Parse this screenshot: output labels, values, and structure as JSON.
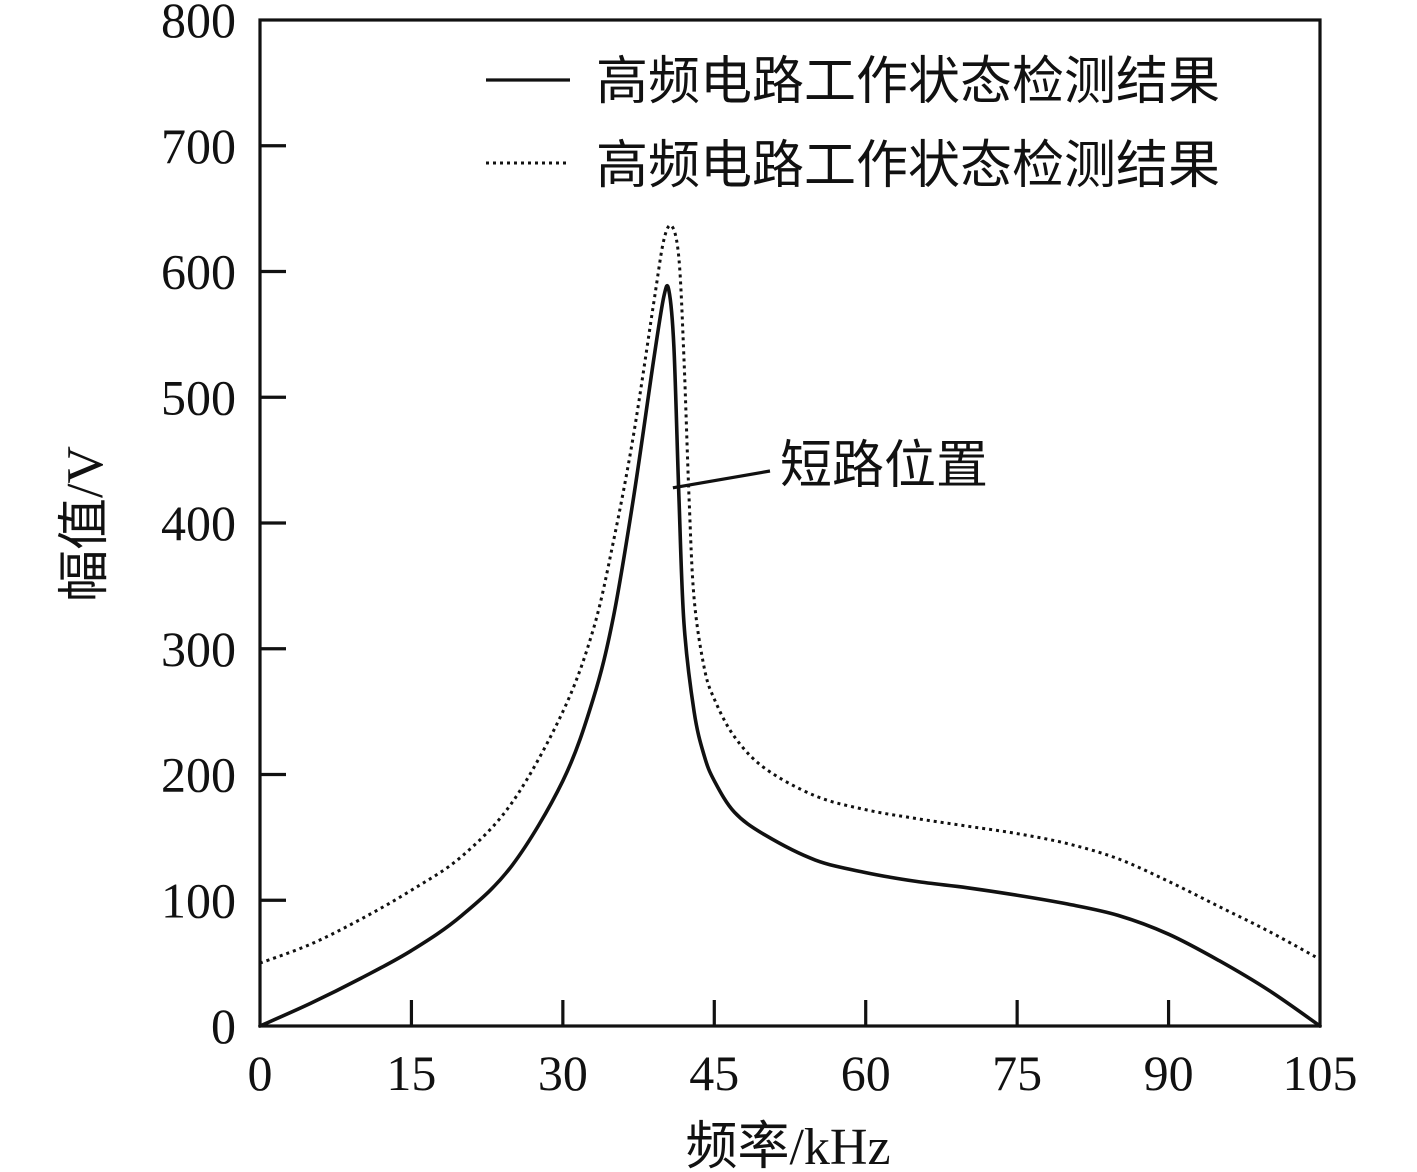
{
  "chart_data": {
    "type": "line",
    "title": "",
    "xlabel": "频率/kHz",
    "ylabel": "幅值/V",
    "xlim": [
      0,
      105
    ],
    "ylim": [
      0,
      800
    ],
    "xticks": [
      0,
      15,
      30,
      45,
      60,
      75,
      90,
      105
    ],
    "yticks": [
      0,
      100,
      200,
      300,
      400,
      500,
      600,
      700,
      800
    ],
    "xtick_labels": [
      "0",
      "15",
      "30",
      "45",
      "60",
      "75",
      "90",
      "105"
    ],
    "ytick_labels": [
      "0",
      "100",
      "200",
      "300",
      "400",
      "500",
      "600",
      "700",
      "800"
    ],
    "grid": false,
    "legend_position": "top-right",
    "colors": {
      "line": "#111111",
      "background": "#ffffff"
    },
    "series": [
      {
        "name": "高频电路工作状态检测结果",
        "style": "solid",
        "points": [
          [
            0,
            0
          ],
          [
            5,
            18
          ],
          [
            10,
            38
          ],
          [
            15,
            60
          ],
          [
            20,
            88
          ],
          [
            25,
            128
          ],
          [
            30,
            195
          ],
          [
            33,
            260
          ],
          [
            35,
            325
          ],
          [
            37,
            420
          ],
          [
            39,
            530
          ],
          [
            40,
            580
          ],
          [
            40.5,
            585
          ],
          [
            41,
            540
          ],
          [
            41.5,
            420
          ],
          [
            42,
            320
          ],
          [
            43,
            250
          ],
          [
            44,
            215
          ],
          [
            45,
            195
          ],
          [
            47,
            170
          ],
          [
            50,
            152
          ],
          [
            55,
            132
          ],
          [
            60,
            122
          ],
          [
            65,
            115
          ],
          [
            70,
            110
          ],
          [
            75,
            104
          ],
          [
            80,
            97
          ],
          [
            85,
            88
          ],
          [
            90,
            73
          ],
          [
            95,
            52
          ],
          [
            100,
            28
          ],
          [
            105,
            0
          ]
        ]
      },
      {
        "name": "高频电路工作状态检测结果",
        "style": "dashed",
        "points": [
          [
            0,
            50
          ],
          [
            5,
            65
          ],
          [
            10,
            85
          ],
          [
            15,
            108
          ],
          [
            20,
            135
          ],
          [
            25,
            178
          ],
          [
            30,
            250
          ],
          [
            33,
            315
          ],
          [
            35,
            385
          ],
          [
            37,
            470
          ],
          [
            39,
            575
          ],
          [
            40,
            625
          ],
          [
            40.8,
            636
          ],
          [
            41.5,
            610
          ],
          [
            42,
            530
          ],
          [
            42.5,
            420
          ],
          [
            43,
            340
          ],
          [
            44,
            285
          ],
          [
            45,
            260
          ],
          [
            47,
            230
          ],
          [
            50,
            205
          ],
          [
            55,
            183
          ],
          [
            60,
            172
          ],
          [
            65,
            165
          ],
          [
            70,
            159
          ],
          [
            75,
            153
          ],
          [
            80,
            145
          ],
          [
            85,
            133
          ],
          [
            90,
            115
          ],
          [
            95,
            95
          ],
          [
            100,
            75
          ],
          [
            105,
            53
          ]
        ]
      }
    ],
    "annotations": [
      {
        "text": "短路位置",
        "x": 40.9,
        "y": 428
      }
    ]
  }
}
